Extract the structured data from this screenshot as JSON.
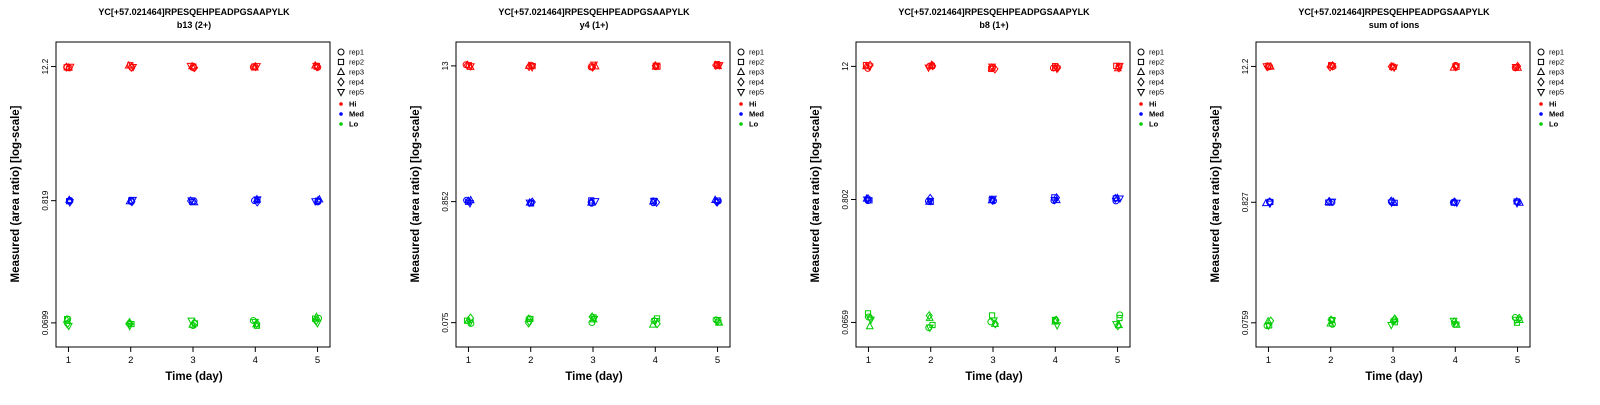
{
  "legend": {
    "reps": [
      {
        "label": "rep1",
        "symbol": "circle"
      },
      {
        "label": "rep2",
        "symbol": "square"
      },
      {
        "label": "rep3",
        "symbol": "triangle-up"
      },
      {
        "label": "rep4",
        "symbol": "diamond"
      },
      {
        "label": "rep5",
        "symbol": "triangle-down"
      }
    ],
    "groups": [
      {
        "label": "Hi",
        "color": "#FF0000"
      },
      {
        "label": "Med",
        "color": "#0000FF"
      },
      {
        "label": "Lo",
        "color": "#00CC00"
      }
    ]
  },
  "chart_data": [
    {
      "type": "scatter",
      "title": "YC[+57.021464]RPESQEHPEADPGSAAPYLK",
      "subtitle": "b13 (2+)",
      "xlabel": "Time (day)",
      "ylabel": "Measured (area ratio) [log-scale]",
      "x": [
        1,
        2,
        3,
        4,
        5
      ],
      "xlim": [
        0.8,
        5.2
      ],
      "ylim": [
        0.043,
        20
      ],
      "y_scale": "log",
      "y_ticks": [
        12.2,
        0.819,
        0.0699
      ],
      "y_tick_labels": [
        "12.2",
        "0.819",
        "0.0699"
      ],
      "series": [
        {
          "name": "Hi",
          "color": "#FF0000",
          "values": [
            12.2,
            12.2,
            12.2,
            12.2,
            12.2
          ],
          "spread": 0.012
        },
        {
          "name": "Med",
          "color": "#0000FF",
          "values": [
            0.819,
            0.819,
            0.819,
            0.819,
            0.819
          ],
          "spread": 0.014
        },
        {
          "name": "Lo",
          "color": "#00CC00",
          "values": [
            0.0699,
            0.0699,
            0.0702,
            0.0712,
            0.0735
          ],
          "spread": 0.035
        }
      ]
    },
    {
      "type": "scatter",
      "title": "YC[+57.021464]RPESQEHPEADPGSAAPYLK",
      "subtitle": "y4 (1+)",
      "xlabel": "Time (day)",
      "ylabel": "Measured (area ratio) [log-scale]",
      "x": [
        1,
        2,
        3,
        4,
        5
      ],
      "xlim": [
        0.8,
        5.2
      ],
      "ylim": [
        0.046,
        21
      ],
      "y_scale": "log",
      "y_ticks": [
        13,
        0.852,
        0.075
      ],
      "y_tick_labels": [
        "13",
        "0.852",
        "0.075"
      ],
      "series": [
        {
          "name": "Hi",
          "color": "#FF0000",
          "values": [
            13,
            13,
            13,
            12.9,
            13.1
          ],
          "spread": 0.012
        },
        {
          "name": "Med",
          "color": "#0000FF",
          "values": [
            0.852,
            0.848,
            0.852,
            0.852,
            0.855
          ],
          "spread": 0.014
        },
        {
          "name": "Lo",
          "color": "#00CC00",
          "values": [
            0.078,
            0.079,
            0.079,
            0.0765,
            0.0795
          ],
          "spread": 0.03
        }
      ]
    },
    {
      "type": "scatter",
      "title": "YC[+57.021464]RPESQEHPEADPGSAAPYLK",
      "subtitle": "b8 (1+)",
      "xlabel": "Time (day)",
      "ylabel": "Measured (area ratio) [log-scale]",
      "x": [
        1,
        2,
        3,
        4,
        5
      ],
      "xlim": [
        0.8,
        5.2
      ],
      "ylim": [
        0.04,
        19.7
      ],
      "y_scale": "log",
      "y_ticks": [
        12,
        0.802,
        0.0659
      ],
      "y_tick_labels": [
        "12",
        "0.802",
        "0.0659"
      ],
      "series": [
        {
          "name": "Hi",
          "color": "#FF0000",
          "values": [
            11.9,
            12,
            11.8,
            11.8,
            11.9
          ],
          "spread": 0.016
        },
        {
          "name": "Med",
          "color": "#0000FF",
          "values": [
            0.802,
            0.795,
            0.805,
            0.805,
            0.8
          ],
          "spread": 0.018
        },
        {
          "name": "Lo",
          "color": "#00CC00",
          "values": [
            0.07,
            0.066,
            0.068,
            0.069,
            0.069
          ],
          "spread": 0.062
        }
      ]
    },
    {
      "type": "scatter",
      "title": "YC[+57.021464]RPESQEHPEADPGSAAPYLK",
      "subtitle": "sum of ions",
      "xlabel": "Time (day)",
      "ylabel": "Measured (area ratio) [log-scale]",
      "x": [
        1,
        2,
        3,
        4,
        5
      ],
      "xlim": [
        0.8,
        5.2
      ],
      "ylim": [
        0.047,
        19.8
      ],
      "y_scale": "log",
      "y_ticks": [
        12.2,
        0.827,
        0.0759
      ],
      "y_tick_labels": [
        "12.2",
        "0.827",
        "0.0759"
      ],
      "series": [
        {
          "name": "Hi",
          "color": "#FF0000",
          "values": [
            12.1,
            12.2,
            12.2,
            12.2,
            12.2
          ],
          "spread": 0.012
        },
        {
          "name": "Med",
          "color": "#0000FF",
          "values": [
            0.827,
            0.825,
            0.827,
            0.827,
            0.828
          ],
          "spread": 0.013
        },
        {
          "name": "Lo",
          "color": "#00CC00",
          "values": [
            0.0759,
            0.0757,
            0.0772,
            0.0759,
            0.0795
          ],
          "spread": 0.028
        }
      ]
    }
  ]
}
